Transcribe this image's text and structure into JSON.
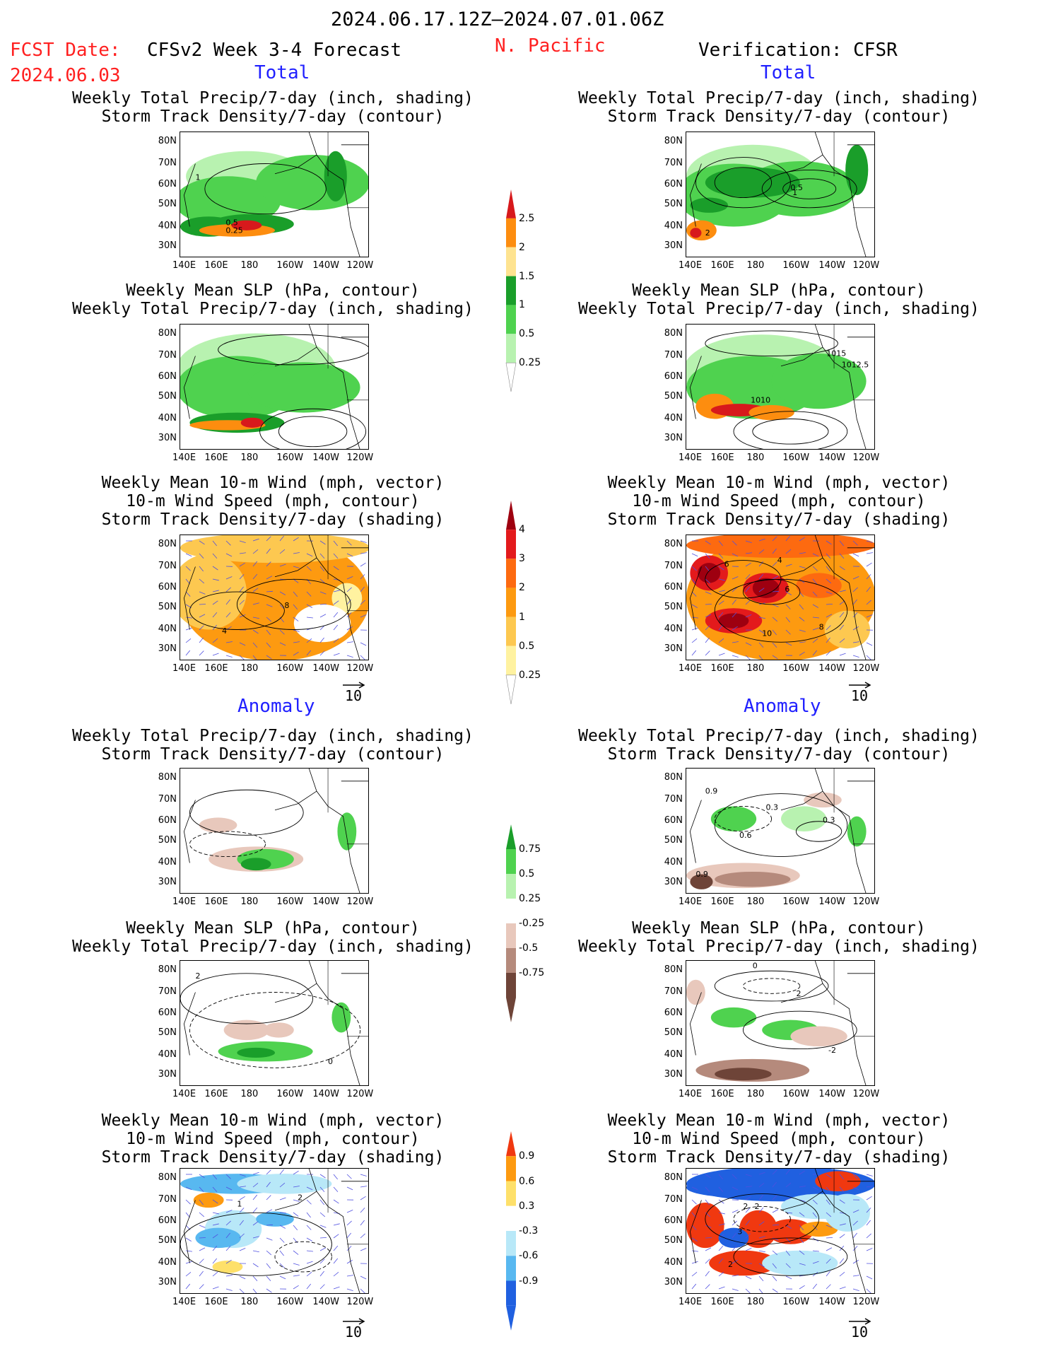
{
  "header": {
    "period": "2024.06.17.12Z–2024.07.01.06Z",
    "fcst_label": "FCST Date:",
    "fcst_date": "2024.06.03",
    "model_title": "CFSv2 Week 3-4 Forecast",
    "region": "N. Pacific",
    "verification": "Verification: CFSR"
  },
  "sections": {
    "total_left": "Total",
    "total_right": "Total",
    "anomaly_left": "Anomaly",
    "anomaly_right": "Anomaly"
  },
  "titles": {
    "precip_storm": [
      "Weekly Total Precip/7-day (inch, shading)",
      "Storm Track Density/7-day (contour)"
    ],
    "slp_precip": [
      "Weekly Mean SLP (hPa, contour)",
      "Weekly Total Precip/7-day (inch, shading)"
    ],
    "wind_storm": [
      "Weekly Mean 10-m Wind (mph, vector)",
      "10-m Wind Speed (mph, contour)",
      "Storm Track Density/7-day (shading)"
    ]
  },
  "axes": {
    "lat_labels": [
      "80N",
      "70N",
      "60N",
      "50N",
      "40N",
      "30N"
    ],
    "lon_labels": [
      "140E",
      "160E",
      "180",
      "160W",
      "140W",
      "120W"
    ]
  },
  "vector_ref": "10",
  "colorbars": {
    "precip_total": {
      "labels": [
        "2.5",
        "2",
        "1.5",
        "1",
        "0.5",
        "0.25"
      ],
      "colors": [
        "#d7191c",
        "#fd8d0f",
        "#fee390",
        "#1a9e2a",
        "#4fd24f",
        "#b8f2b0"
      ]
    },
    "storm_total": {
      "labels": [
        "4",
        "3",
        "2",
        "1",
        "0.5",
        "0.25"
      ],
      "colors": [
        "#9e0010",
        "#e31a1c",
        "#fd6a10",
        "#fd9a10",
        "#fdc850",
        "#fff2a0"
      ]
    },
    "precip_anom": {
      "labels": [
        "0.75",
        "0.5",
        "0.25",
        "-0.25",
        "-0.5",
        "-0.75"
      ],
      "colors": [
        "#1a9e2a",
        "#4fd24f",
        "#b8f2b0",
        "#ffffff",
        "#e8c8bc",
        "#b58a7c",
        "#6e4438"
      ]
    },
    "storm_anom": {
      "labels": [
        "0.9",
        "0.6",
        "0.3",
        "-0.3",
        "-0.6",
        "-0.9"
      ],
      "colors": [
        "#f03810",
        "#fd9a10",
        "#fee06a",
        "#ffffff",
        "#b8e8f8",
        "#58b8f0",
        "#2060e0"
      ]
    }
  },
  "contour_labels": {
    "p1l": [
      "1",
      "0.5",
      "0.25"
    ],
    "p1r": [
      "0.5",
      "1",
      "2"
    ],
    "p2r": [
      "1015",
      "1012.5",
      "1010"
    ],
    "p3l": [
      "8",
      "4"
    ],
    "p3r": [
      "6",
      "4",
      "6",
      "10",
      "8"
    ],
    "p4r": [
      "0.9",
      "0.3",
      "0.6",
      "0.3",
      "0.9"
    ],
    "p5l": [
      "2",
      "0"
    ],
    "p5r": [
      "0",
      "2",
      "-2"
    ],
    "p6l": [
      "1",
      "2"
    ],
    "p6r": [
      "2",
      "2",
      "3",
      "2"
    ]
  }
}
